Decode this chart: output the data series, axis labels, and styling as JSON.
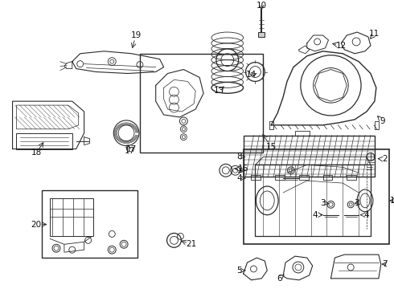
{
  "bg_color": "#ffffff",
  "lc": "#2a2a2a",
  "fig_w": 4.9,
  "fig_h": 3.6,
  "dpi": 100
}
